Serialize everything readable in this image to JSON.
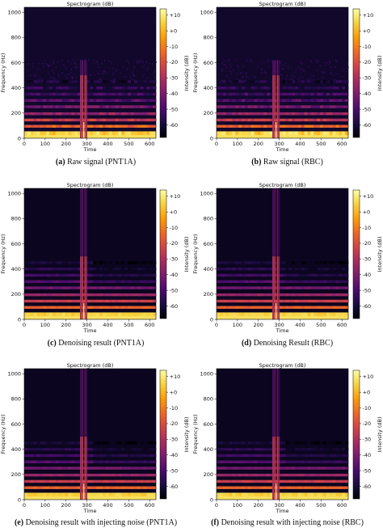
{
  "colors": {
    "colormap": [
      "#000004",
      "#1b0c41",
      "#4a0c6b",
      "#781c6d",
      "#a52c60",
      "#cf4446",
      "#ed6925",
      "#fb9b06",
      "#f7d13d",
      "#fcffa4"
    ]
  },
  "chart_data": [
    {
      "type": "heatmap",
      "panel": "(a)",
      "caption": "Raw signal (PNT1A)",
      "title": "Spectrogram (dB)",
      "xlabel": "Time",
      "ylabel": "Frequency (Hz)",
      "xlim": [
        0,
        630
      ],
      "ylim": [
        0,
        1040
      ],
      "xticks": [
        0,
        100,
        200,
        300,
        400,
        500,
        600
      ],
      "yticks": [
        0,
        200,
        400,
        600,
        800,
        1000
      ],
      "colorbar": {
        "label": "Intensity (dB)",
        "ticks": [
          "+10",
          "+0",
          "-10",
          "-20",
          "-30",
          "-40",
          "-50",
          "-60"
        ],
        "range": [
          -68,
          14
        ]
      },
      "harmonics_hz": [
        40,
        95,
        145,
        195,
        250,
        300,
        350,
        400,
        450
      ],
      "harmonic_levels_db": [
        5,
        -15,
        -25,
        -35,
        -42,
        -48,
        -52,
        -56,
        -60
      ],
      "burst_time": 285,
      "burst_max_hz": 620,
      "background_db": -62,
      "noise": "high"
    },
    {
      "type": "heatmap",
      "panel": "(b)",
      "caption": "Raw signal (RBC)",
      "title": "Spectrogram (dB)",
      "xlabel": "Time",
      "ylabel": "Frequency (Hz)",
      "xlim": [
        0,
        630
      ],
      "ylim": [
        0,
        1040
      ],
      "xticks": [
        0,
        100,
        200,
        300,
        400,
        500,
        600
      ],
      "yticks": [
        0,
        200,
        400,
        600,
        800,
        1000
      ],
      "colorbar": {
        "label": "Intensity (dB)",
        "ticks": [
          "+10",
          "+0",
          "-10",
          "-20",
          "-30",
          "-40",
          "-50",
          "-60"
        ],
        "range": [
          -68,
          14
        ]
      },
      "harmonics_hz": [
        40,
        95,
        145,
        195,
        250,
        300,
        350,
        400,
        450
      ],
      "harmonic_levels_db": [
        5,
        -15,
        -25,
        -35,
        -42,
        -48,
        -52,
        -56,
        -60
      ],
      "burst_time": 285,
      "burst_max_hz": 620,
      "background_db": -62,
      "noise": "high"
    },
    {
      "type": "heatmap",
      "panel": "(c)",
      "caption": "Denoising result (PNT1A)",
      "title": "Spectrogram (dB)",
      "xlabel": "Time",
      "ylabel": "Frequency (Hz)",
      "xlim": [
        0,
        630
      ],
      "ylim": [
        0,
        1040
      ],
      "xticks": [
        0,
        100,
        200,
        300,
        400,
        500,
        600
      ],
      "yticks": [
        0,
        200,
        400,
        600,
        800,
        1000
      ],
      "colorbar": {
        "label": "Intensity (dB)",
        "ticks": [
          "+10",
          "+0",
          "-10",
          "-20",
          "-30",
          "-40",
          "-50",
          "-60"
        ],
        "range": [
          -68,
          14
        ]
      },
      "harmonics_hz": [
        40,
        95,
        145,
        195,
        250,
        300,
        350,
        400,
        450
      ],
      "harmonic_levels_db": [
        5,
        -15,
        -25,
        -35,
        -42,
        -48,
        -52,
        -56,
        -60
      ],
      "burst_time": 285,
      "burst_max_hz": 1040,
      "background_db": -64,
      "noise": "low"
    },
    {
      "type": "heatmap",
      "panel": "(d)",
      "caption": "Denoising Result (RBC)",
      "title": "Spectrogram (dB)",
      "xlabel": "Time",
      "ylabel": "Frequency (Hz)",
      "xlim": [
        0,
        630
      ],
      "ylim": [
        0,
        1040
      ],
      "xticks": [
        0,
        100,
        200,
        300,
        400,
        500,
        600
      ],
      "yticks": [
        0,
        200,
        400,
        600,
        800,
        1000
      ],
      "colorbar": {
        "label": "Intensity (dB)",
        "ticks": [
          "+10",
          "+0",
          "-10",
          "-20",
          "-30",
          "-40",
          "-50",
          "-60"
        ],
        "range": [
          -68,
          14
        ]
      },
      "harmonics_hz": [
        40,
        95,
        145,
        195,
        250,
        300,
        350,
        400,
        450
      ],
      "harmonic_levels_db": [
        5,
        -15,
        -25,
        -35,
        -42,
        -48,
        -52,
        -56,
        -60
      ],
      "burst_time": 285,
      "burst_max_hz": 1040,
      "background_db": -64,
      "noise": "low"
    },
    {
      "type": "heatmap",
      "panel": "(e)",
      "caption": "Denoising result with injecting noise (PNT1A)",
      "title": "Spectrogram (dB)",
      "xlabel": "Time",
      "ylabel": "Frequency (Hz)",
      "xlim": [
        0,
        630
      ],
      "ylim": [
        0,
        1040
      ],
      "xticks": [
        0,
        100,
        200,
        300,
        400,
        500,
        600
      ],
      "yticks": [
        0,
        200,
        400,
        600,
        800,
        1000
      ],
      "colorbar": {
        "label": "Intensity (dB)",
        "ticks": [
          "+10",
          "+0",
          "-10",
          "-20",
          "-30",
          "-40",
          "-50",
          "-60"
        ],
        "range": [
          -68,
          14
        ]
      },
      "harmonics_hz": [
        40,
        95,
        145,
        195,
        250,
        300,
        350,
        400,
        450
      ],
      "harmonic_levels_db": [
        5,
        -15,
        -25,
        -35,
        -42,
        -48,
        -52,
        -56,
        -60
      ],
      "burst_time": 285,
      "burst_max_hz": 1040,
      "background_db": -64,
      "noise": "low"
    },
    {
      "type": "heatmap",
      "panel": "(f)",
      "caption": "Denoising result with injecting noise (RBC)",
      "title": "Spectrogram (dB)",
      "xlabel": "Time",
      "ylabel": "Frequency (Hz)",
      "xlim": [
        0,
        630
      ],
      "ylim": [
        0,
        1040
      ],
      "xticks": [
        0,
        100,
        200,
        300,
        400,
        500,
        600
      ],
      "yticks": [
        0,
        200,
        400,
        600,
        800,
        1000
      ],
      "colorbar": {
        "label": "Intensity (dB)",
        "ticks": [
          "+10",
          "+0",
          "-10",
          "-20",
          "-30",
          "-40",
          "-50",
          "-60"
        ],
        "range": [
          -68,
          14
        ]
      },
      "harmonics_hz": [
        40,
        95,
        145,
        195,
        250,
        300,
        350,
        400,
        450
      ],
      "harmonic_levels_db": [
        5,
        -15,
        -25,
        -35,
        -42,
        -48,
        -52,
        -56,
        -60
      ],
      "burst_time": 285,
      "burst_max_hz": 1040,
      "background_db": -64,
      "noise": "low"
    }
  ]
}
